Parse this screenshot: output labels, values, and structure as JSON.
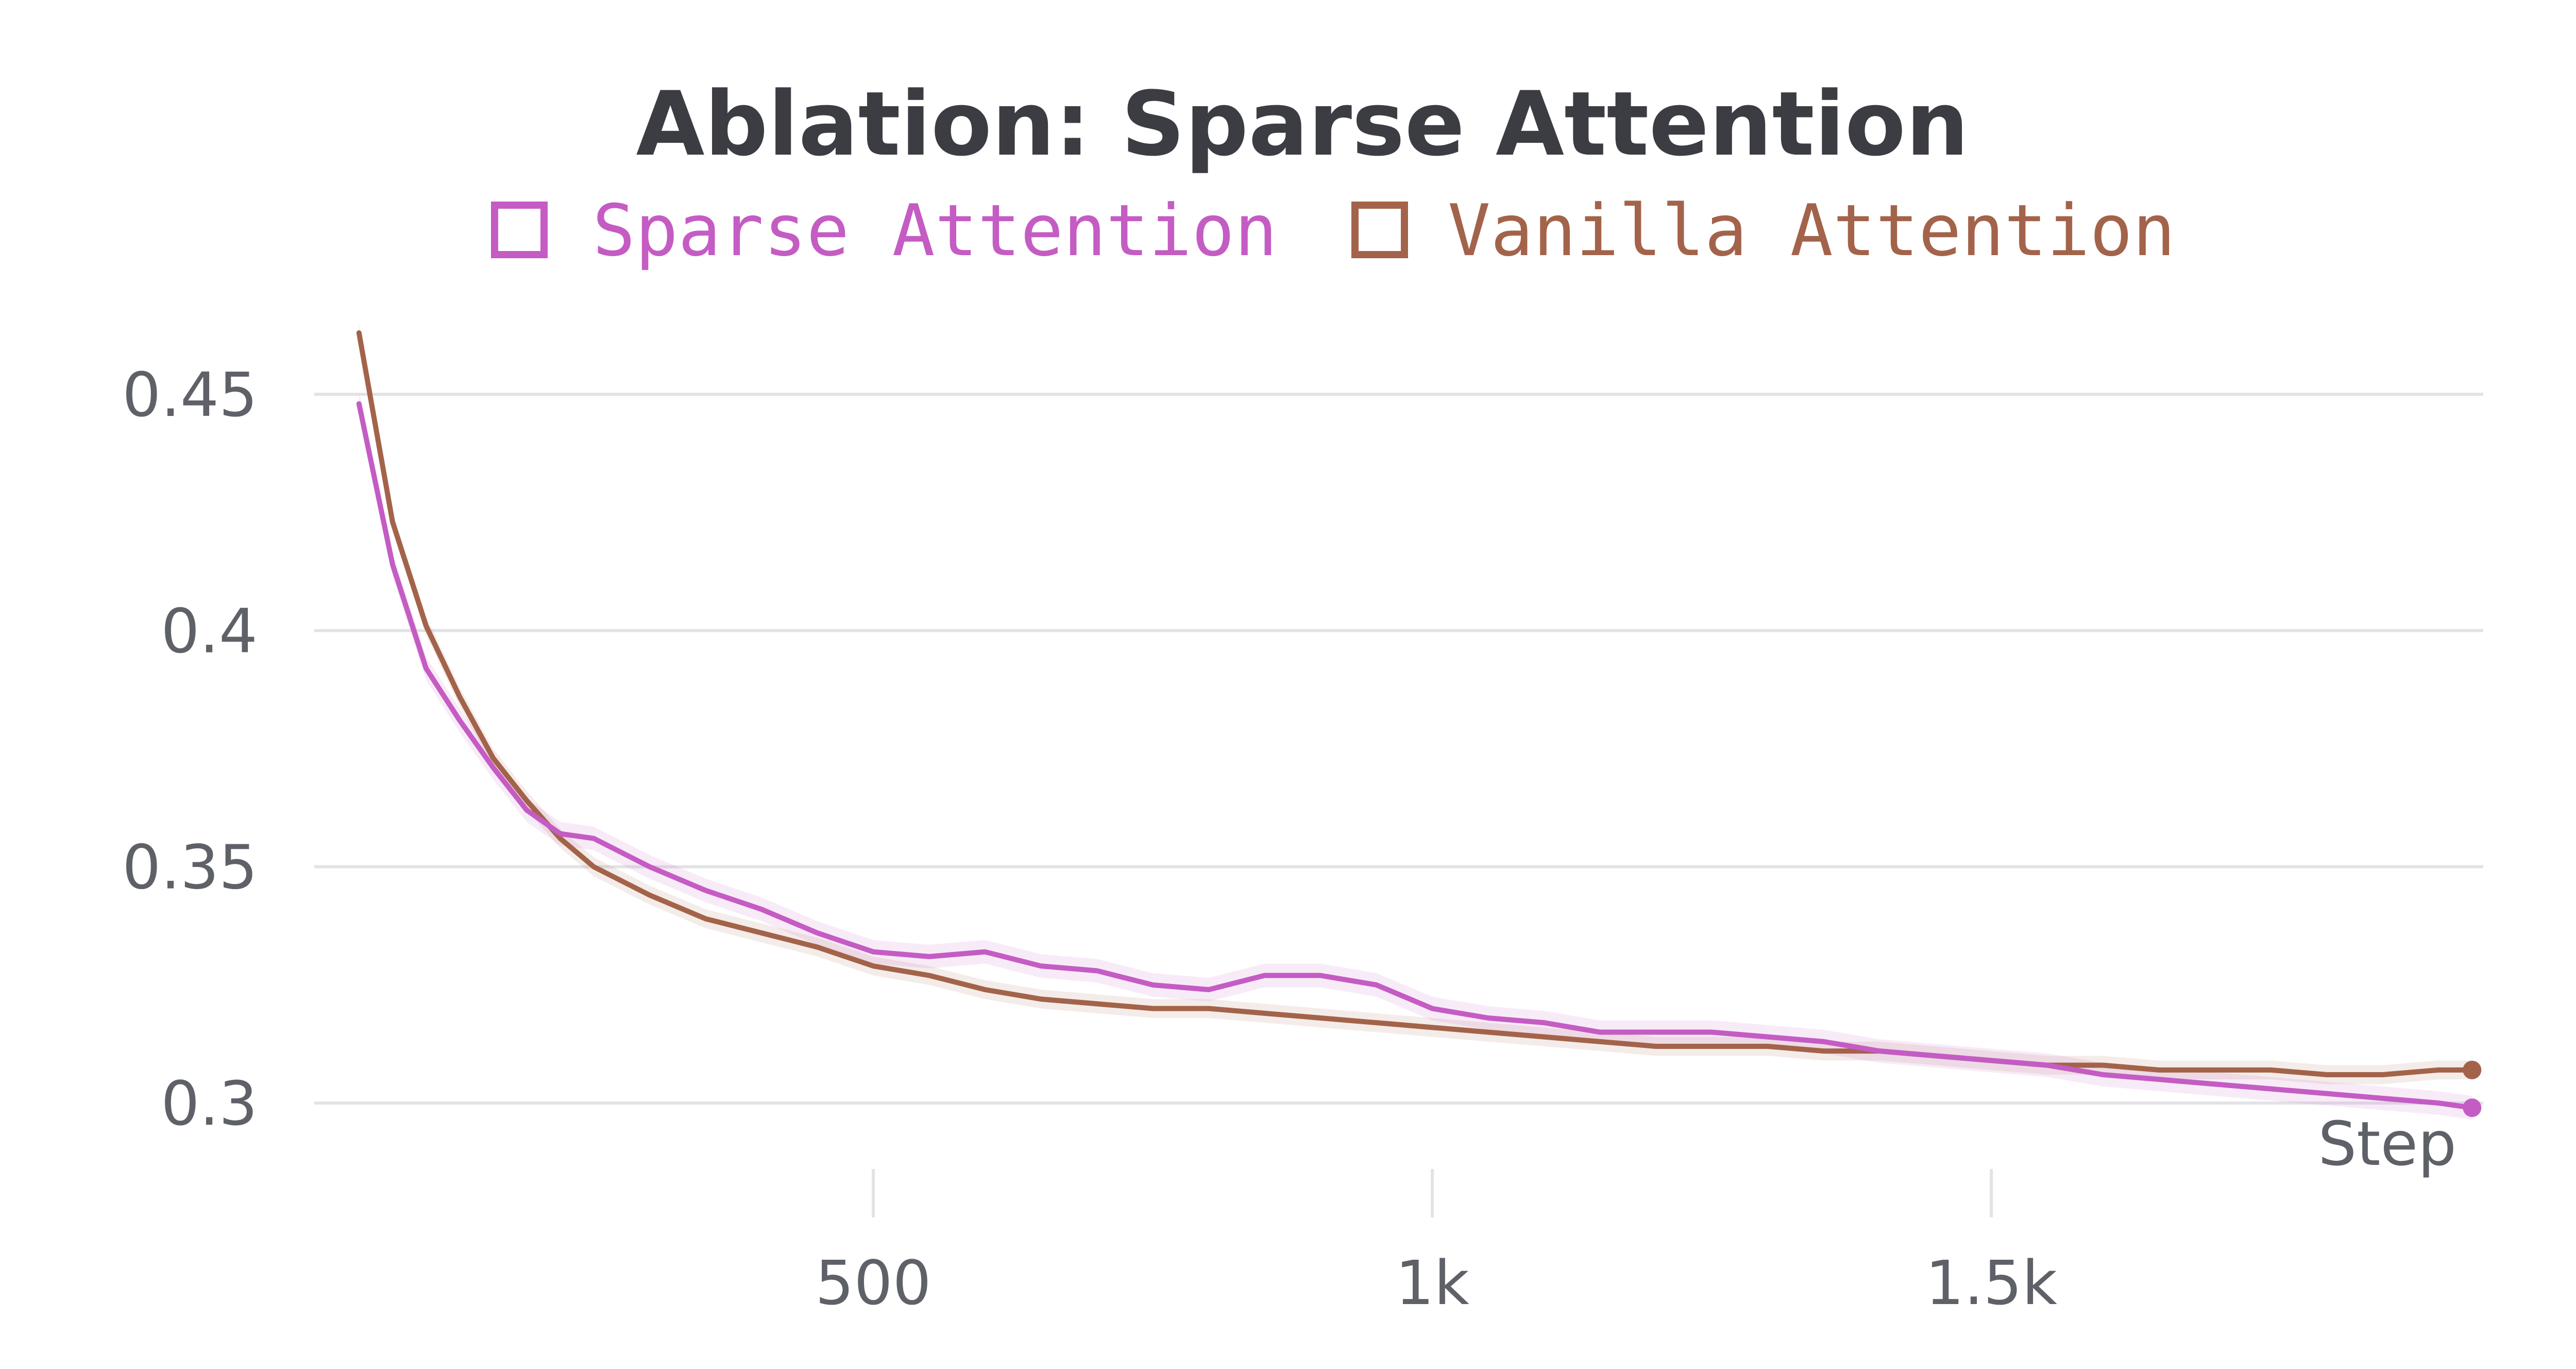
{
  "chart_data": {
    "type": "line",
    "title": "Ablation: Sparse Attention",
    "xlabel": "Step",
    "ylabel": "",
    "xlim": [
      0,
      1940
    ],
    "ylim": [
      0.288,
      0.468
    ],
    "x_ticks": [
      {
        "value": 500,
        "label": "500"
      },
      {
        "value": 1000,
        "label": "1k"
      },
      {
        "value": 1500,
        "label": "1.5k"
      }
    ],
    "y_ticks": [
      {
        "value": 0.45,
        "label": "0.45"
      },
      {
        "value": 0.4,
        "label": "0.4"
      },
      {
        "value": 0.35,
        "label": "0.35"
      },
      {
        "value": 0.3,
        "label": "0.3"
      }
    ],
    "grid": "horizontal",
    "legend": "top-center",
    "x": [
      40,
      70,
      100,
      130,
      160,
      190,
      220,
      250,
      300,
      350,
      400,
      450,
      500,
      550,
      600,
      650,
      700,
      750,
      800,
      850,
      900,
      950,
      1000,
      1050,
      1100,
      1150,
      1200,
      1250,
      1300,
      1350,
      1400,
      1450,
      1500,
      1550,
      1600,
      1650,
      1700,
      1750,
      1800,
      1850,
      1900,
      1930
    ],
    "series": [
      {
        "name": "Sparse Attention",
        "color": "#c45cc4",
        "band": 0.0025,
        "values": [
          0.448,
          0.414,
          0.392,
          0.381,
          0.371,
          0.362,
          0.357,
          0.356,
          0.35,
          0.345,
          0.341,
          0.336,
          0.332,
          0.331,
          0.332,
          0.329,
          0.328,
          0.325,
          0.324,
          0.327,
          0.327,
          0.325,
          0.32,
          0.318,
          0.317,
          0.315,
          0.315,
          0.315,
          0.314,
          0.313,
          0.311,
          0.31,
          0.309,
          0.308,
          0.306,
          0.305,
          0.304,
          0.303,
          0.302,
          0.301,
          0.3,
          0.299
        ]
      },
      {
        "name": "Vanilla Attention",
        "color": "#a3634a",
        "band": 0.002,
        "values": [
          0.463,
          0.423,
          0.401,
          0.386,
          0.373,
          0.364,
          0.356,
          0.35,
          0.344,
          0.339,
          0.336,
          0.333,
          0.329,
          0.327,
          0.324,
          0.322,
          0.321,
          0.32,
          0.32,
          0.319,
          0.318,
          0.317,
          0.316,
          0.315,
          0.314,
          0.313,
          0.312,
          0.312,
          0.312,
          0.311,
          0.311,
          0.31,
          0.309,
          0.308,
          0.308,
          0.307,
          0.307,
          0.307,
          0.306,
          0.306,
          0.307,
          0.307
        ]
      }
    ]
  }
}
